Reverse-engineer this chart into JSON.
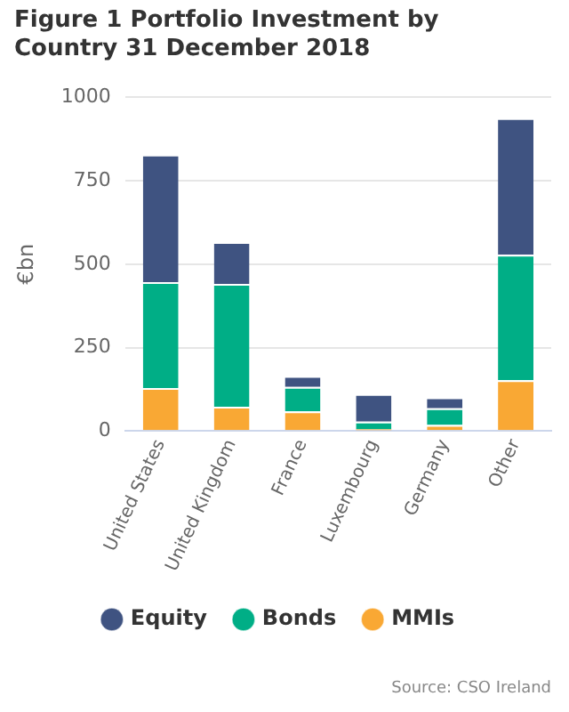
{
  "chart_data": {
    "type": "bar",
    "title": "Figure 1 Portfolio Investment by Country 31 December 2018",
    "ylabel": "€bn",
    "categories": [
      "United States",
      "United Kingdom",
      "France",
      "Luxembourg",
      "Germany",
      "Other"
    ],
    "stacked": true,
    "series": [
      {
        "name": "MMIs",
        "color": "#f9a834",
        "values": [
          129,
          73,
          59,
          5,
          18,
          152
        ]
      },
      {
        "name": "Bonds",
        "color": "#00ae86",
        "values": [
          317,
          368,
          73,
          23,
          50,
          376
        ]
      },
      {
        "name": "Equity",
        "color": "#3f5381",
        "values": [
          382,
          125,
          33,
          83,
          33,
          409
        ]
      }
    ],
    "ylim": [
      0,
      1000
    ],
    "yticks": [
      0,
      250,
      500,
      750,
      1000
    ],
    "grid": "y",
    "legend": "bottom",
    "annotations": [
      "Source: CSO Ireland"
    ]
  }
}
